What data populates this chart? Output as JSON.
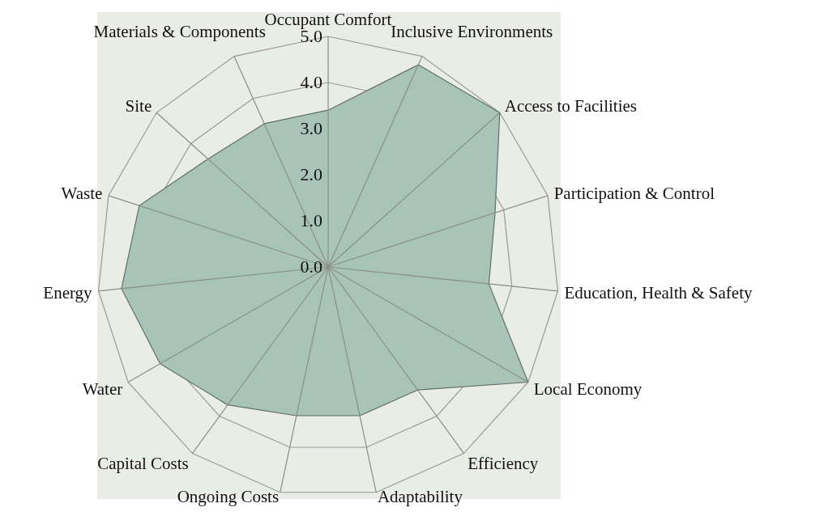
{
  "chart_data": {
    "type": "radar",
    "categories": [
      "Occupant Comfort",
      "Inclusive Environments",
      "Access to Facilities",
      "Participation & Control",
      "Education, Health & Safety",
      "Local Economy",
      "Efficiency",
      "Adaptability",
      "Ongoing Costs",
      "Capital Costs",
      "Water",
      "Energy",
      "Waste",
      "Site",
      "Materials & Components"
    ],
    "series": [
      {
        "color": "#a8c4b9",
        "values": [
          3.4,
          4.8,
          5.0,
          3.8,
          3.5,
          5.0,
          3.3,
          3.3,
          3.3,
          3.7,
          4.2,
          4.5,
          4.3,
          3.5,
          3.4
        ]
      }
    ],
    "ylim": [
      0,
      5
    ],
    "yticks": [
      {
        "value": 0,
        "label": "0.0"
      },
      {
        "value": 1,
        "label": "1.0"
      },
      {
        "value": 2,
        "label": "2.0"
      },
      {
        "value": 3,
        "label": "3.0"
      },
      {
        "value": 4,
        "label": "4.0"
      },
      {
        "value": 5,
        "label": "5.0"
      }
    ],
    "grid": true
  }
}
